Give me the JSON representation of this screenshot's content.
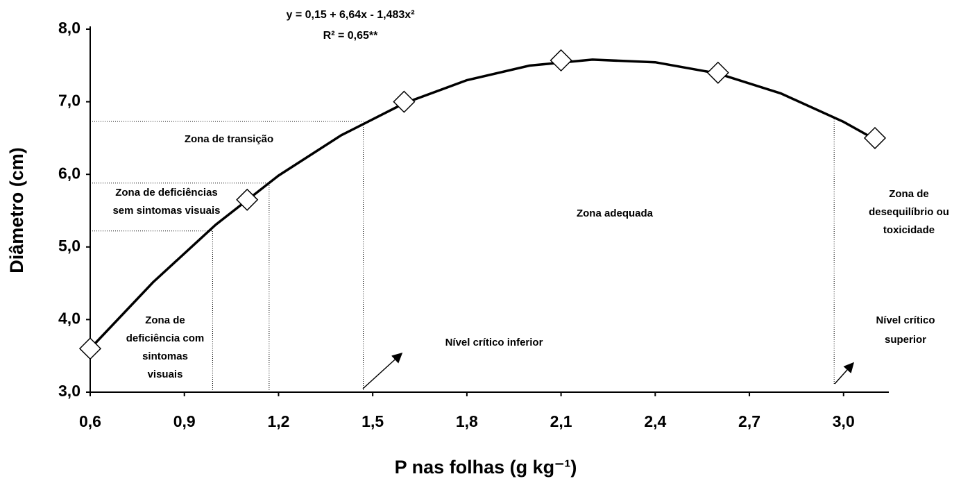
{
  "chart_data": {
    "type": "scatter",
    "equation": "y =  0,15 + 6,64x - 1,483x²",
    "r_squared": "R² = 0,65**",
    "x_label": "P nas folhas (g kg⁻¹)",
    "y_label": "Diâmetro (cm)",
    "x": [
      0.6,
      1.1,
      1.6,
      2.1,
      2.6,
      3.1
    ],
    "values": [
      3.6,
      5.65,
      7.0,
      7.57,
      7.4,
      6.5
    ],
    "fit": {
      "x": [
        0.6,
        0.8,
        1.0,
        1.2,
        1.4,
        1.6,
        1.8,
        2.0,
        2.2,
        2.4,
        2.6,
        2.8,
        3.0,
        3.1
      ],
      "values": [
        3.6,
        4.513,
        5.307,
        5.983,
        6.539,
        6.978,
        7.297,
        7.498,
        7.58,
        7.544,
        7.389,
        7.115,
        6.723,
        6.482
      ]
    },
    "reference_lines": [
      {
        "x": 0.99,
        "y": 5.22
      },
      {
        "x": 1.17,
        "y": 5.88
      },
      {
        "x": 1.47,
        "y": 6.73
      },
      {
        "x": 2.97,
        "y": 6.8
      }
    ],
    "annotations": [
      {
        "lines": [
          "Zona de transição"
        ]
      },
      {
        "lines": [
          "Zona de deficiências",
          "sem sintomas visuais"
        ]
      },
      {
        "lines": [
          "Zona adequada"
        ]
      },
      {
        "lines": [
          "Zona de",
          "desequilíbrio ou",
          "toxicidade"
        ]
      },
      {
        "lines": [
          "Zona de",
          "deficiência com",
          "sintomas",
          "visuais"
        ]
      },
      {
        "lines": [
          "Nível crítico inferior"
        ]
      },
      {
        "lines": [
          "Nível crítico",
          "superior"
        ]
      }
    ],
    "xlim": [
      0.6,
      3.1
    ],
    "ylim": [
      3,
      8
    ],
    "xticks": [
      {
        "value": 0.6,
        "label": "0,6"
      },
      {
        "value": 0.9,
        "label": "0,9"
      },
      {
        "value": 1.2,
        "label": "1,2"
      },
      {
        "value": 1.5,
        "label": "1,5"
      },
      {
        "value": 1.8,
        "label": "1,8"
      },
      {
        "value": 2.1,
        "label": "2,1"
      },
      {
        "value": 2.4,
        "label": "2,4"
      },
      {
        "value": 2.7,
        "label": "2,7"
      },
      {
        "value": 3.0,
        "label": "3,0"
      }
    ],
    "yticks": [
      {
        "value": 3,
        "label": "3,0"
      },
      {
        "value": 4,
        "label": "4,0"
      },
      {
        "value": 5,
        "label": "5,0"
      },
      {
        "value": 6,
        "label": "6,0"
      },
      {
        "value": 7,
        "label": "7,0"
      },
      {
        "value": 8,
        "label": "8,0"
      }
    ],
    "color": "#000000"
  }
}
